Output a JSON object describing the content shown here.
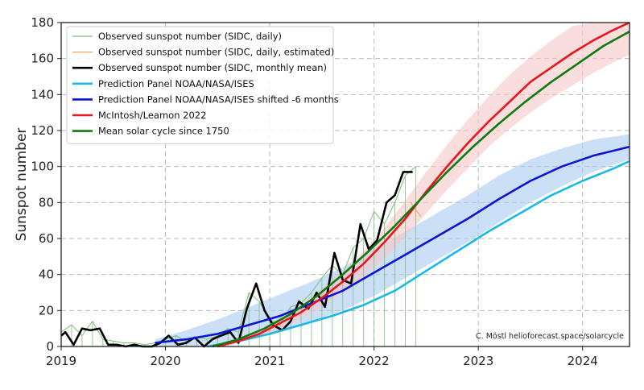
{
  "chart_data": {
    "type": "line",
    "ylabel": "Sunspot number",
    "xlabel": "",
    "xlim": [
      2019.0,
      2024.45
    ],
    "ylim": [
      0,
      180
    ],
    "x_ticks": [
      "2019",
      "2020",
      "2021",
      "2022",
      "2023",
      "2024"
    ],
    "y_ticks": [
      "0",
      "20",
      "40",
      "60",
      "80",
      "100",
      "120",
      "140",
      "160",
      "180"
    ],
    "grid": true,
    "legend_position": "top-left",
    "credit": "C. Möstl  helioforecast.space/solarcycle",
    "series": [
      {
        "name": "Observed sunspot number (SIDC, daily)",
        "color": "#7bbf7b",
        "style": "thin-noisy",
        "x": [
          2019.0,
          2019.1,
          2019.2,
          2019.3,
          2019.4,
          2019.5,
          2019.6,
          2019.7,
          2019.8,
          2019.9,
          2020.0,
          2020.1,
          2020.2,
          2020.3,
          2020.4,
          2020.5,
          2020.6,
          2020.7,
          2020.8,
          2020.9,
          2021.0,
          2021.1,
          2021.2,
          2021.3,
          2021.4,
          2021.5,
          2021.6,
          2021.7,
          2021.8,
          2021.9,
          2022.0,
          2022.1,
          2022.2,
          2022.3,
          2022.4
        ],
        "values": [
          8,
          12,
          6,
          14,
          4,
          3,
          2,
          2,
          1,
          2,
          4,
          6,
          3,
          5,
          4,
          6,
          10,
          8,
          30,
          25,
          15,
          12,
          22,
          24,
          30,
          38,
          45,
          40,
          55,
          60,
          75,
          68,
          80,
          95,
          100
        ]
      },
      {
        "name": "Observed sunspot number (SIDC, daily, estimated)",
        "color": "#f0a060",
        "style": "thin",
        "x": [
          2022.35,
          2022.45
        ],
        "values": [
          80,
          72
        ]
      },
      {
        "name": "Observed sunspot number (SIDC, monthly mean)",
        "color": "#000000",
        "x": [
          2019.0,
          2019.04,
          2019.12,
          2019.2,
          2019.28,
          2019.37,
          2019.45,
          2019.53,
          2019.62,
          2019.7,
          2019.78,
          2019.87,
          2019.95,
          2020.03,
          2020.12,
          2020.2,
          2020.28,
          2020.37,
          2020.45,
          2020.53,
          2020.62,
          2020.7,
          2020.78,
          2020.87,
          2020.95,
          2021.03,
          2021.12,
          2021.2,
          2021.28,
          2021.37,
          2021.45,
          2021.53,
          2021.62,
          2021.7,
          2021.78,
          2021.87,
          2021.95,
          2022.03,
          2022.12,
          2022.2,
          2022.28,
          2022.37
        ],
        "values": [
          6,
          8,
          1,
          10,
          9,
          10,
          1,
          1,
          0,
          1,
          0,
          0,
          2,
          6,
          1,
          2,
          5,
          0,
          4,
          6,
          8,
          2,
          21,
          35,
          20,
          12,
          9,
          14,
          25,
          21,
          30,
          22,
          52,
          37,
          35,
          68,
          54,
          59,
          80,
          84,
          97,
          97
        ]
      },
      {
        "name": "Prediction Panel NOAA/NASA/ISES",
        "color": "#1ab8e6",
        "x": [
          2020.4,
          2020.7,
          2021.0,
          2021.3,
          2021.6,
          2021.9,
          2022.2,
          2022.5,
          2022.8,
          2023.1,
          2023.4,
          2023.7,
          2024.0,
          2024.3,
          2024.45
        ],
        "values": [
          0,
          3,
          7,
          12,
          17,
          23,
          31,
          42,
          53,
          64,
          74,
          84,
          92,
          99,
          103
        ]
      },
      {
        "name": "Prediction Panel NOAA/NASA/ISES shifted -6 months",
        "color": "#0a14d6",
        "band_color": "#a9ccf2",
        "x": [
          2019.9,
          2020.2,
          2020.5,
          2020.8,
          2021.1,
          2021.4,
          2021.7,
          2022.0,
          2022.3,
          2022.6,
          2022.9,
          2023.2,
          2023.5,
          2023.8,
          2024.1,
          2024.45
        ],
        "values": [
          2,
          4,
          7,
          12,
          17,
          24,
          31,
          41,
          51,
          61,
          71,
          82,
          92,
          100,
          106,
          111
        ],
        "band_low": [
          0,
          0,
          1,
          4,
          8,
          14,
          20,
          28,
          38,
          48,
          58,
          69,
          80,
          89,
          97,
          104
        ],
        "band_high": [
          4,
          9,
          15,
          22,
          29,
          36,
          44,
          54,
          64,
          74,
          84,
          95,
          104,
          110,
          115,
          118
        ]
      },
      {
        "name": "McIntosh/Leamon 2022",
        "color": "#e8141e",
        "band_color": "#f7c6c6",
        "x": [
          2020.5,
          2020.7,
          2020.9,
          2021.1,
          2021.3,
          2021.5,
          2021.7,
          2021.9,
          2022.1,
          2022.3,
          2022.5,
          2022.7,
          2022.9,
          2023.1,
          2023.3,
          2023.5,
          2023.7,
          2023.9,
          2024.1,
          2024.3,
          2024.45
        ],
        "values": [
          0,
          3,
          7,
          13,
          19,
          27,
          36,
          46,
          58,
          71,
          86,
          100,
          113,
          125,
          136,
          147,
          155,
          163,
          170,
          176,
          180
        ],
        "band_low": [
          0,
          2,
          5,
          10,
          15,
          22,
          30,
          39,
          49,
          61,
          74,
          87,
          99,
          111,
          121,
          130,
          138,
          145,
          152,
          158,
          162
        ],
        "band_high": [
          0,
          4,
          9,
          16,
          23,
          32,
          42,
          53,
          66,
          81,
          97,
          112,
          126,
          139,
          151,
          161,
          170,
          178,
          184,
          190,
          193
        ]
      },
      {
        "name": "Mean solar cycle since 1750",
        "color": "#0f7a0f",
        "x": [
          2020.45,
          2020.7,
          2020.95,
          2021.2,
          2021.45,
          2021.7,
          2021.95,
          2022.2,
          2022.45,
          2022.7,
          2022.95,
          2023.2,
          2023.45,
          2023.7,
          2023.95,
          2024.2,
          2024.45
        ],
        "values": [
          0,
          4,
          10,
          18,
          28,
          40,
          53,
          67,
          82,
          97,
          111,
          124,
          136,
          147,
          157,
          167,
          175
        ]
      }
    ]
  }
}
